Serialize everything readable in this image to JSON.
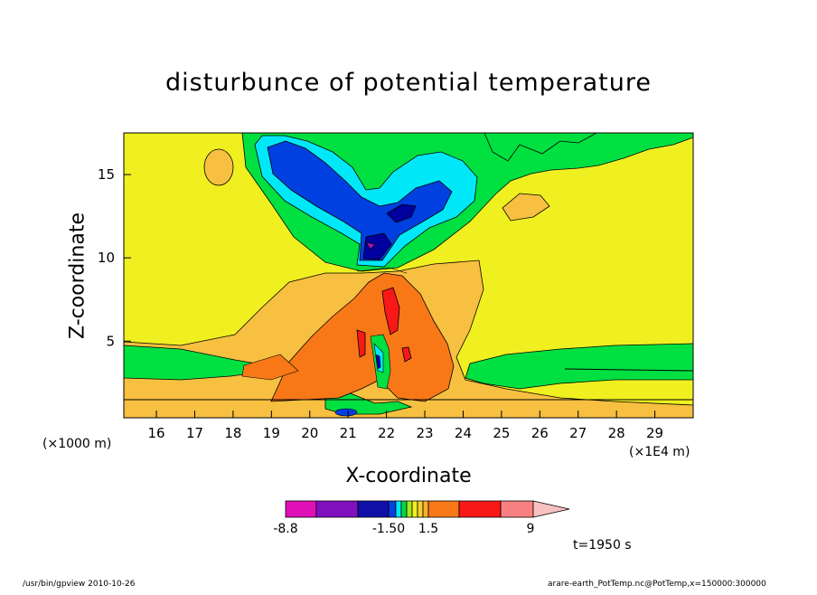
{
  "chart_data": {
    "type": "heatmap",
    "title": "disturbunce of potential temperature",
    "xlabel": "X-coordinate",
    "ylabel": "Z-coordinate",
    "x_unit_left": "(×1000 m)",
    "x_unit_right": "(×1E4 m)",
    "xlim": [
      15.15,
      30
    ],
    "ylim": [
      0.4,
      17.5
    ],
    "x_ticks": [
      16,
      17,
      18,
      19,
      20,
      21,
      22,
      23,
      24,
      25,
      26,
      27,
      28,
      29
    ],
    "x_tick_labels": [
      "16",
      "17",
      "18",
      "19",
      "20",
      "21",
      "22",
      "23",
      "24",
      "25",
      "26",
      "27",
      "28",
      "29"
    ],
    "y_ticks": [
      5,
      10,
      15
    ],
    "y_tick_labels": [
      "5",
      "10",
      "15"
    ],
    "colorbar": {
      "labels": [
        "-8.8",
        "-1.50",
        "1.5",
        "9"
      ],
      "colors": [
        "#e010b8",
        "#8010c0",
        "#1010a8",
        "#0040e0",
        "#00e8f8",
        "#00d848",
        "#a8e818",
        "#f0f020",
        "#f8d030",
        "#f8b030",
        "#f87818",
        "#f81818",
        "#f88080",
        "#f8c0c0"
      ]
    },
    "time_label": "t=1950 s",
    "colors": {
      "background": "#f0f020",
      "green": "#00e040",
      "cyan": "#00e8f8",
      "blue": "#0000c8",
      "darkblue": "#0000a0",
      "lightorange": "#f8c040",
      "orange": "#f87818",
      "red": "#f81818",
      "purple": "#a010c0"
    }
  },
  "footer": {
    "left": "/usr/bin/gpview  2010-10-26",
    "right": "arare-earth_PotTemp.nc@PotTemp,x=150000:300000"
  }
}
